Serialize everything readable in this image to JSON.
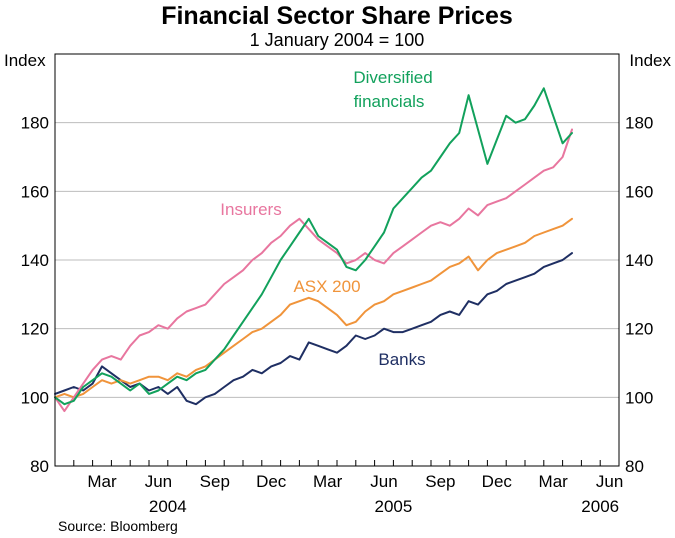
{
  "chart_data": {
    "type": "line",
    "title": "Financial Sector Share Prices",
    "subtitle": "1 January 2004 = 100",
    "ylabel_left": "Index",
    "ylabel_right": "Index",
    "ylim": [
      80,
      200
    ],
    "yticks": [
      80,
      100,
      120,
      140,
      160,
      180
    ],
    "x_unit": "months since 1 January 2004",
    "xlim": [
      0,
      30
    ],
    "xticks": [
      {
        "label": "Mar",
        "x": 2.5
      },
      {
        "label": "Jun",
        "x": 5.5
      },
      {
        "label": "Sep",
        "x": 8.5
      },
      {
        "label": "Dec",
        "x": 11.5
      },
      {
        "label": "Mar",
        "x": 14.5
      },
      {
        "label": "Jun",
        "x": 17.5
      },
      {
        "label": "Sep",
        "x": 20.5
      },
      {
        "label": "Dec",
        "x": 23.5
      },
      {
        "label": "Mar",
        "x": 26.5
      },
      {
        "label": "Jun",
        "x": 29.5
      }
    ],
    "year_labels": [
      {
        "label": "2004",
        "x": 6
      },
      {
        "label": "2005",
        "x": 18
      },
      {
        "label": "2006",
        "x": 29
      }
    ],
    "source": "Source: Bloomberg",
    "series": [
      {
        "name": "Banks",
        "label": "Banks",
        "color": "#1f2f63",
        "x": [
          0,
          0.5,
          1,
          1.5,
          2,
          2.5,
          3,
          3.5,
          4,
          4.5,
          5,
          5.5,
          6,
          6.5,
          7,
          7.5,
          8,
          8.5,
          9,
          9.5,
          10,
          10.5,
          11,
          11.5,
          12,
          12.5,
          13,
          13.5,
          14,
          14.5,
          15,
          15.5,
          16,
          16.5,
          17,
          17.5,
          18,
          18.5,
          19,
          19.5,
          20,
          20.5,
          21,
          21.5,
          22,
          22.5,
          23,
          23.5,
          24,
          24.5,
          25,
          25.5,
          26,
          26.5,
          27,
          27.5
        ],
        "values": [
          101,
          102,
          103,
          102,
          104,
          109,
          107,
          105,
          103,
          104,
          102,
          103,
          101,
          103,
          99,
          98,
          100,
          101,
          103,
          105,
          106,
          108,
          107,
          109,
          110,
          112,
          111,
          116,
          115,
          114,
          113,
          115,
          118,
          117,
          118,
          120,
          119,
          119,
          120,
          121,
          122,
          124,
          125,
          124,
          128,
          127,
          130,
          131,
          133,
          134,
          135,
          136,
          138,
          139,
          140,
          142
        ]
      },
      {
        "name": "ASX 200",
        "label": "ASX 200",
        "color": "#f0943b",
        "x": [
          0,
          0.5,
          1,
          1.5,
          2,
          2.5,
          3,
          3.5,
          4,
          4.5,
          5,
          5.5,
          6,
          6.5,
          7,
          7.5,
          8,
          8.5,
          9,
          9.5,
          10,
          10.5,
          11,
          11.5,
          12,
          12.5,
          13,
          13.5,
          14,
          14.5,
          15,
          15.5,
          16,
          16.5,
          17,
          17.5,
          18,
          18.5,
          19,
          19.5,
          20,
          20.5,
          21,
          21.5,
          22,
          22.5,
          23,
          23.5,
          24,
          24.5,
          25,
          25.5,
          26,
          26.5,
          27,
          27.5
        ],
        "values": [
          100,
          101,
          100,
          101,
          103,
          105,
          104,
          105,
          104,
          105,
          106,
          106,
          105,
          107,
          106,
          108,
          109,
          111,
          113,
          115,
          117,
          119,
          120,
          122,
          124,
          127,
          128,
          129,
          128,
          126,
          124,
          121,
          122,
          125,
          127,
          128,
          130,
          131,
          132,
          133,
          134,
          136,
          138,
          139,
          141,
          137,
          140,
          142,
          143,
          144,
          145,
          147,
          148,
          149,
          150,
          152
        ]
      },
      {
        "name": "Insurers",
        "label": "Insurers",
        "color": "#e8769f",
        "x": [
          0,
          0.5,
          1,
          1.5,
          2,
          2.5,
          3,
          3.5,
          4,
          4.5,
          5,
          5.5,
          6,
          6.5,
          7,
          7.5,
          8,
          8.5,
          9,
          9.5,
          10,
          10.5,
          11,
          11.5,
          12,
          12.5,
          13,
          13.5,
          14,
          14.5,
          15,
          15.5,
          16,
          16.5,
          17,
          17.5,
          18,
          18.5,
          19,
          19.5,
          20,
          20.5,
          21,
          21.5,
          22,
          22.5,
          23,
          23.5,
          24,
          24.5,
          25,
          25.5,
          26,
          26.5,
          27,
          27.5
        ],
        "values": [
          100,
          96,
          100,
          104,
          108,
          111,
          112,
          111,
          115,
          118,
          119,
          121,
          120,
          123,
          125,
          126,
          127,
          130,
          133,
          135,
          137,
          140,
          142,
          145,
          147,
          150,
          152,
          149,
          146,
          144,
          142,
          139,
          140,
          142,
          140,
          139,
          142,
          144,
          146,
          148,
          150,
          151,
          150,
          152,
          155,
          153,
          156,
          157,
          158,
          160,
          162,
          164,
          166,
          167,
          170,
          178
        ]
      },
      {
        "name": "Diversified financials",
        "label": "Diversified financials",
        "color": "#12a15c",
        "x": [
          0,
          0.5,
          1,
          1.5,
          2,
          2.5,
          3,
          3.5,
          4,
          4.5,
          5,
          5.5,
          6,
          6.5,
          7,
          7.5,
          8,
          8.5,
          9,
          9.5,
          10,
          10.5,
          11,
          11.5,
          12,
          12.5,
          13,
          13.5,
          14,
          14.5,
          15,
          15.5,
          16,
          16.5,
          17,
          17.5,
          18,
          18.5,
          19,
          19.5,
          20,
          20.5,
          21,
          21.5,
          22,
          22.5,
          23,
          23.5,
          24,
          24.5,
          25,
          25.5,
          26,
          26.5,
          27,
          27.5
        ],
        "values": [
          100,
          98,
          99,
          103,
          105,
          107,
          106,
          104,
          102,
          104,
          101,
          102,
          104,
          106,
          105,
          107,
          108,
          111,
          114,
          118,
          122,
          126,
          130,
          135,
          140,
          144,
          148,
          152,
          147,
          145,
          143,
          138,
          137,
          140,
          144,
          148,
          155,
          158,
          161,
          164,
          166,
          170,
          174,
          177,
          188,
          178,
          168,
          175,
          182,
          180,
          181,
          185,
          190,
          182,
          174,
          177
        ]
      }
    ]
  }
}
